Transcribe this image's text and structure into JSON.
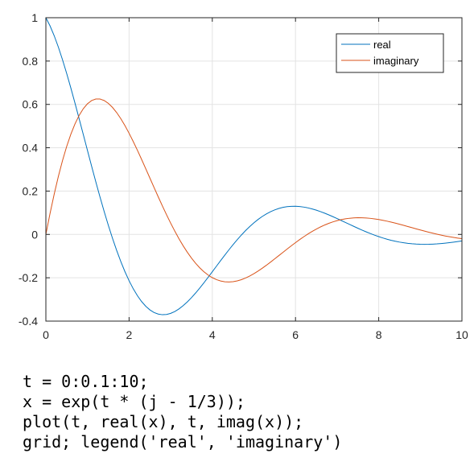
{
  "chart_data": {
    "type": "line",
    "xlim": [
      0,
      10
    ],
    "ylim": [
      -0.4,
      1
    ],
    "grid": true,
    "legend_position": "top-right",
    "x_ticks": [
      "0",
      "2",
      "4",
      "6",
      "8",
      "10"
    ],
    "y_ticks": [
      "-0.4",
      "-0.2",
      "0",
      "0.2",
      "0.4",
      "0.6",
      "0.8",
      "1"
    ],
    "x_tick_values": [
      0,
      2,
      4,
      6,
      8,
      10
    ],
    "y_tick_values": [
      -0.4,
      -0.2,
      0,
      0.2,
      0.4,
      0.6,
      0.8,
      1
    ],
    "x_step": 0.1,
    "decay": 0.3333333,
    "series": [
      {
        "name": "real",
        "color": "#0072BD",
        "function": "real"
      },
      {
        "name": "imaginary",
        "color": "#D95319",
        "function": "imag"
      }
    ]
  },
  "code": [
    "t = 0:0.1:10;",
    "x = exp(t * (j - 1/3));",
    "plot(t, real(x), t, imag(x));",
    "grid; legend('real', 'imaginary')"
  ]
}
